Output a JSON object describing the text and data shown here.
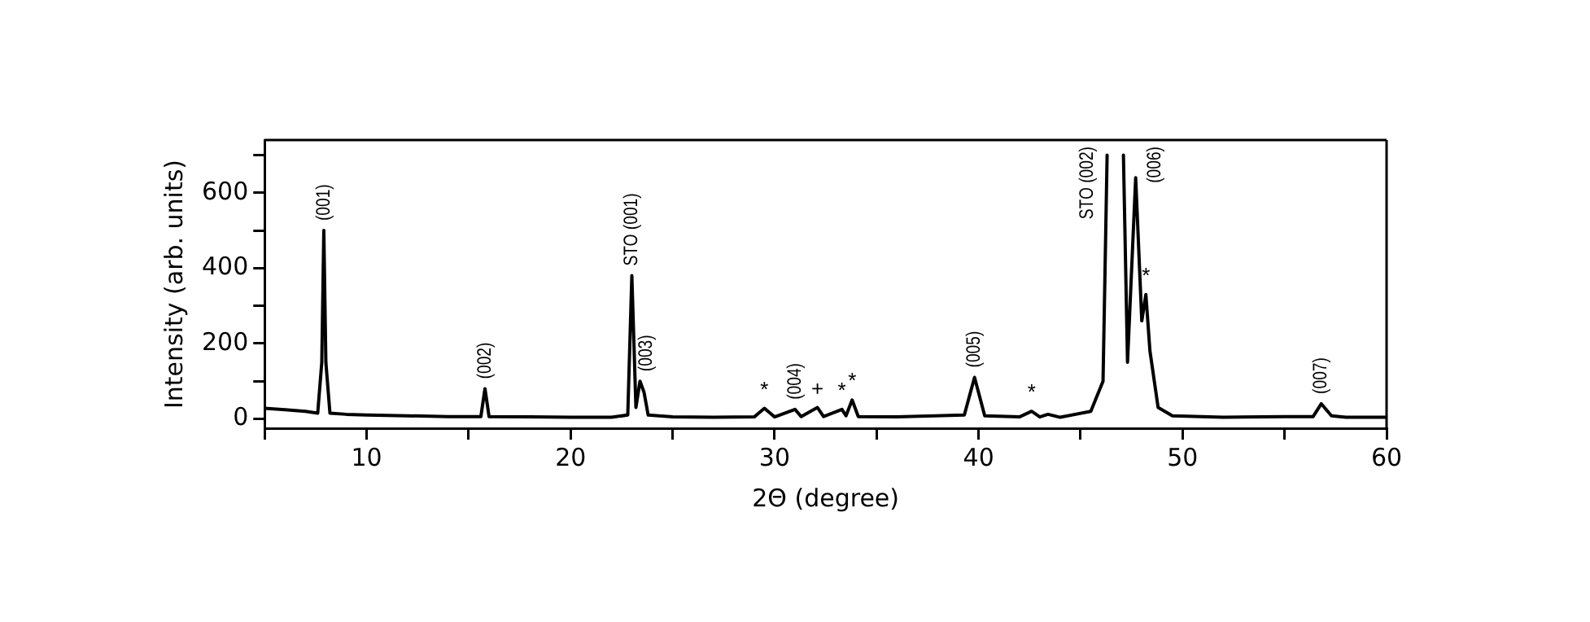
{
  "chart_data": {
    "type": "line",
    "xlabel": "2Θ (degree)",
    "ylabel": "Intensity (arb. units)",
    "series": [
      {
        "color": "#000000",
        "x": [
          5,
          6,
          7,
          7.6,
          7.8,
          7.9,
          8.0,
          8.2,
          9,
          10,
          12,
          14,
          15.6,
          15.8,
          16.0,
          18,
          20,
          22,
          22.8,
          23.0,
          23.2,
          23.4,
          23.6,
          23.8,
          25,
          27,
          29,
          29.5,
          30,
          31,
          31.3,
          32.1,
          32.4,
          33.3,
          33.5,
          33.8,
          34.1,
          36,
          39.3,
          39.8,
          40.3,
          42,
          42.6,
          43,
          43.4,
          44,
          45.5,
          46.1,
          46.3,
          46.4,
          47.0,
          47.1,
          47.3,
          47.7,
          48.0,
          48.2,
          48.4,
          48.8,
          49.5,
          52,
          55,
          56.4,
          56.8,
          57.3,
          58,
          60
        ],
        "values": [
          28,
          24,
          20,
          15,
          150,
          500,
          150,
          15,
          12,
          10,
          8,
          6,
          6,
          80,
          6,
          5,
          4,
          4,
          10,
          380,
          30,
          100,
          70,
          10,
          5,
          4,
          5,
          28,
          5,
          25,
          6,
          30,
          6,
          25,
          8,
          50,
          6,
          5,
          10,
          110,
          8,
          5,
          20,
          5,
          12,
          4,
          20,
          100,
          700,
          null,
          null,
          700,
          150,
          640,
          260,
          330,
          180,
          30,
          8,
          4,
          6,
          6,
          40,
          8,
          4,
          4
        ]
      }
    ],
    "xlim": [
      5,
      60
    ],
    "xticks": [
      {
        "value": 5,
        "label": null
      },
      10,
      {
        "value": 15,
        "label": null
      },
      20,
      {
        "value": 25,
        "label": null
      },
      30,
      {
        "value": 35,
        "label": null
      },
      40,
      {
        "value": 45,
        "label": null
      },
      50,
      {
        "value": 55,
        "label": null
      },
      60
    ],
    "ylim": [
      -25,
      740
    ],
    "yticks": [
      0,
      {
        "value": 100,
        "label": null
      },
      200,
      {
        "value": 300,
        "label": null
      },
      400,
      {
        "value": 500,
        "label": null
      },
      600,
      {
        "value": 700,
        "label": null
      }
    ],
    "grid": false,
    "legend": false,
    "marker": "none",
    "line_style": "solid",
    "annotations": [
      {
        "text": "(001)",
        "x": 7.9,
        "y": 500
      },
      {
        "text": "(002)",
        "x": 15.8,
        "y": 80
      },
      {
        "text": "STO (001)",
        "x": 23.0,
        "y": 380
      },
      {
        "text": "(003)",
        "x": 23.4,
        "y": 100
      },
      {
        "text": "*",
        "x": 29.5,
        "y": 28
      },
      {
        "text": "(004)",
        "x": 31.0,
        "y": 25
      },
      {
        "text": "+",
        "x": 32.1,
        "y": 30
      },
      {
        "text": "*",
        "x": 33.3,
        "y": 25
      },
      {
        "text": "*",
        "x": 33.8,
        "y": 50
      },
      {
        "text": "(005)",
        "x": 39.8,
        "y": 110
      },
      {
        "text": "*",
        "x": 42.6,
        "y": 20
      },
      {
        "text": "STO (002)",
        "x": 46.3,
        "y": 700
      },
      {
        "text": "(006)",
        "x": 47.7,
        "y": 640
      },
      {
        "text": "*",
        "x": 48.2,
        "y": 330
      },
      {
        "text": "(007)",
        "x": 56.8,
        "y": 40
      }
    ]
  }
}
